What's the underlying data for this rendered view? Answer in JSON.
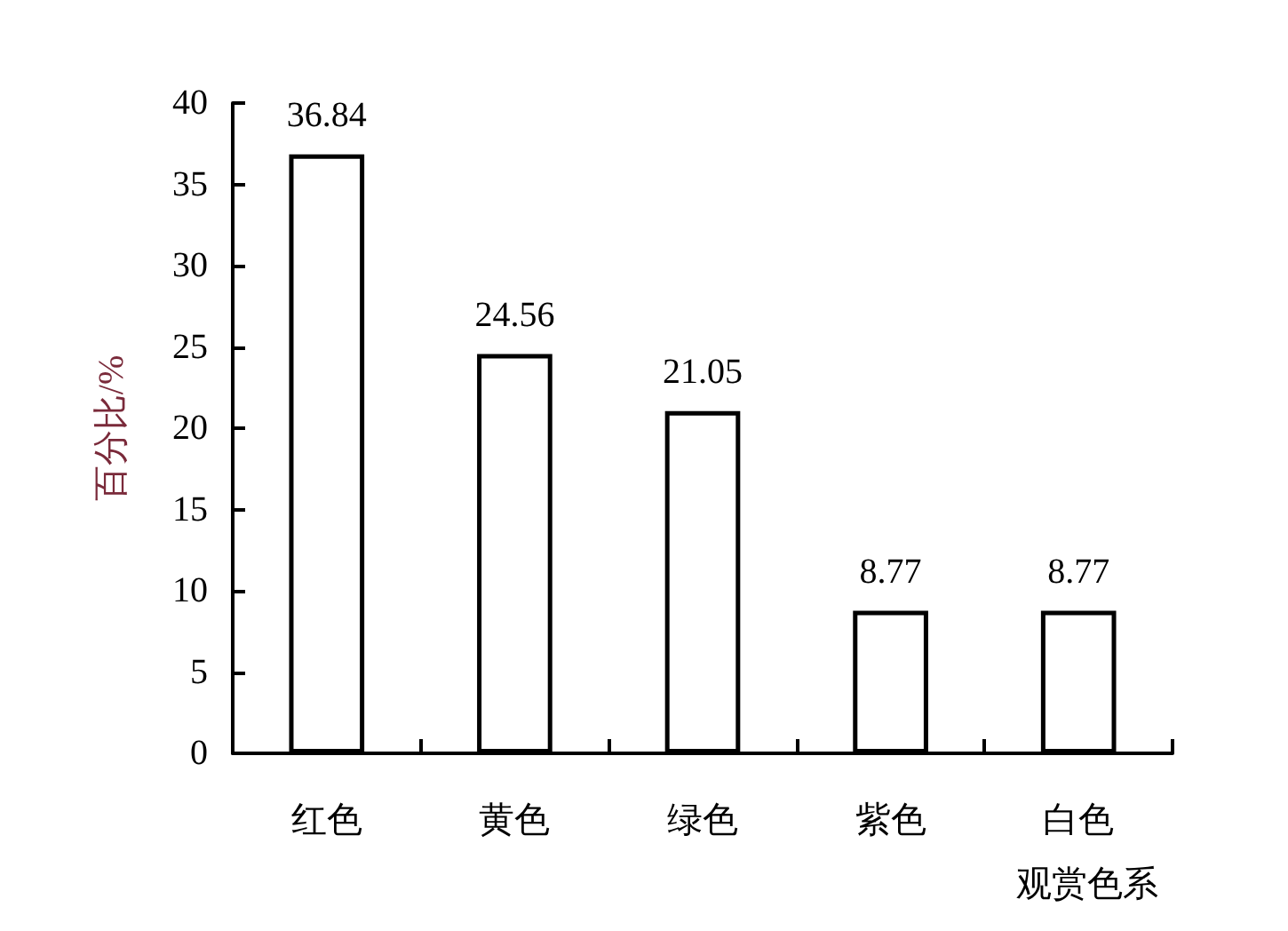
{
  "chart_data": {
    "type": "bar",
    "categories": [
      "红色",
      "黄色",
      "绿色",
      "紫色",
      "白色"
    ],
    "values": [
      36.84,
      24.56,
      21.05,
      8.77,
      8.77
    ],
    "color": "#ffffff",
    "data_labels": true,
    "ylabel": "百分比/%",
    "xlabel": "观赏色系",
    "ylim": [
      0,
      40
    ],
    "yticks": [
      0,
      5,
      10,
      15,
      20,
      25,
      30,
      35,
      40
    ],
    "grid": false
  }
}
